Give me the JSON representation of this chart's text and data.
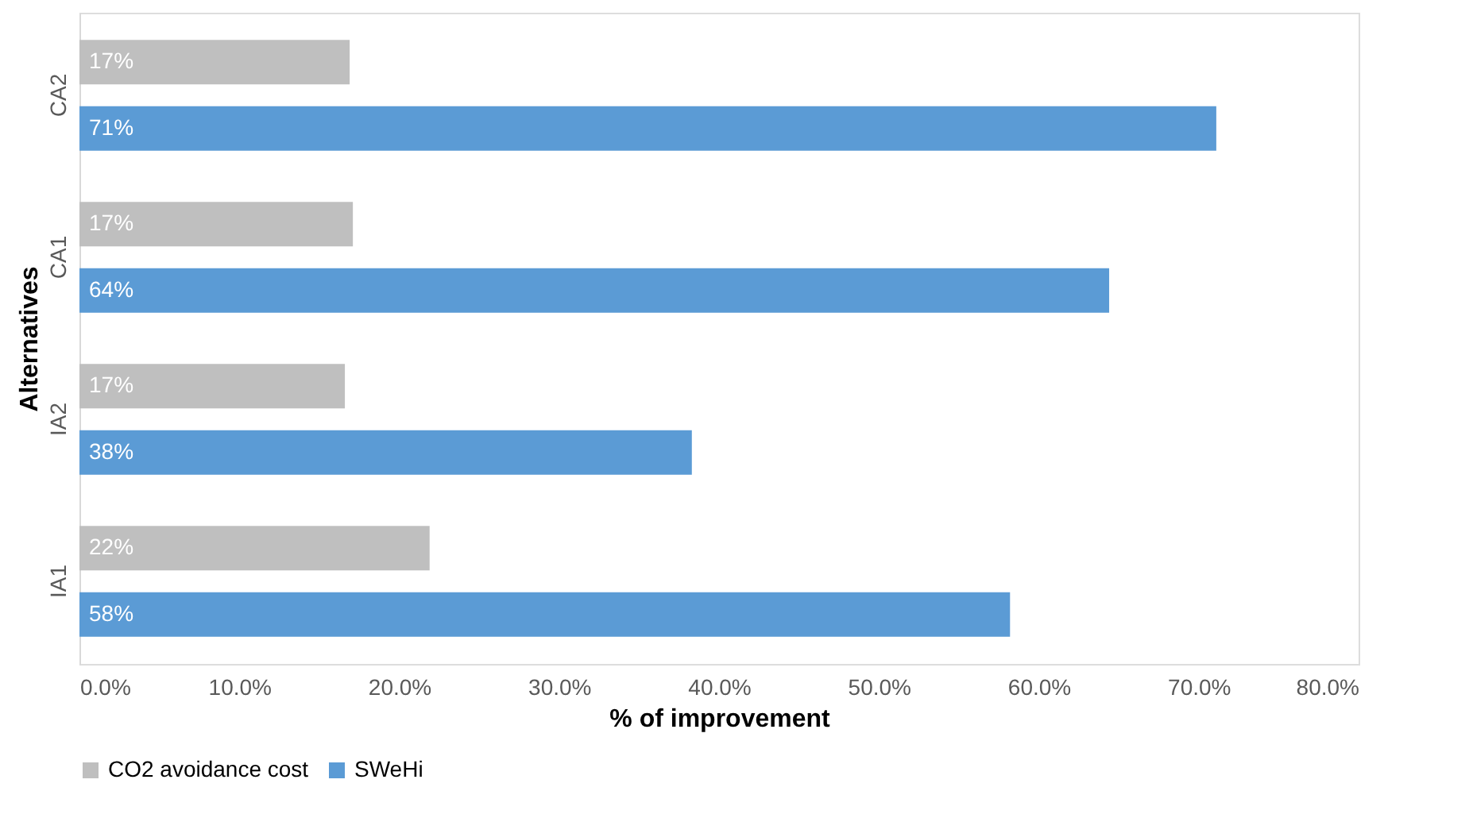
{
  "chart_data": {
    "type": "bar",
    "orientation": "horizontal",
    "xlabel": "% of improvement",
    "ylabel": "Alternatives",
    "categories": [
      "CA2",
      "CA1",
      "IA2",
      "IA1"
    ],
    "series": [
      {
        "name": "CO2 avoidance cost",
        "color": "#bfbfbf",
        "values": [
          16.9,
          17.1,
          16.6,
          21.9
        ],
        "value_labels": [
          "17%",
          "17%",
          "17%",
          "22%"
        ]
      },
      {
        "name": "SWeHi",
        "color": "#5b9bd5",
        "values": [
          71.1,
          64.4,
          38.3,
          58.2
        ],
        "value_labels": [
          "71%",
          "64%",
          "38%",
          "58%"
        ]
      }
    ],
    "xlim": [
      0,
      80
    ],
    "xticks": [
      {
        "value": 0,
        "label": "0.0%"
      },
      {
        "value": 10,
        "label": "10.0%"
      },
      {
        "value": 20,
        "label": "20.0%"
      },
      {
        "value": 30,
        "label": "30.0%"
      },
      {
        "value": 40,
        "label": "40.0%"
      },
      {
        "value": 50,
        "label": "50.0%"
      },
      {
        "value": 60,
        "label": "60.0%"
      },
      {
        "value": 70,
        "label": "70.0%"
      },
      {
        "value": 80,
        "label": "80.0%"
      }
    ],
    "legend": "bottom",
    "grid": false
  }
}
